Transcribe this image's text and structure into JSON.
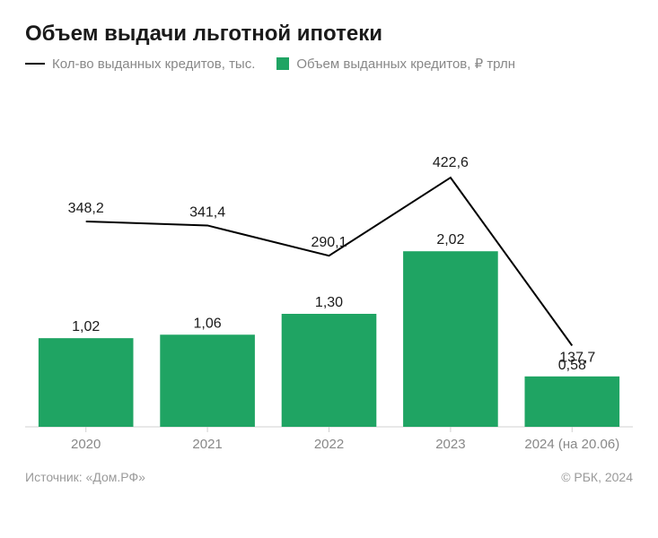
{
  "title": "Объем выдачи льготной ипотеки",
  "legend": {
    "line": "Кол-во выданных кредитов, тыс.",
    "bar": "Объем выданных кредитов, ₽ трлн"
  },
  "chart": {
    "type": "bar+line",
    "categories": [
      "2020",
      "2021",
      "2022",
      "2023",
      "2024 (на 20.06)"
    ],
    "bar_values": [
      1.02,
      1.06,
      1.3,
      2.02,
      0.58
    ],
    "bar_labels": [
      "1,02",
      "1,06",
      "1,30",
      "2,02",
      "0,58"
    ],
    "bar_color": "#1fa463",
    "line_values": [
      348.2,
      341.4,
      290.1,
      422.6,
      137.7
    ],
    "line_labels": [
      "348,2",
      "341,4",
      "290,1",
      "422,6",
      "137,7"
    ],
    "line_color": "#000000",
    "background_color": "#ffffff",
    "axis_color": "#d0d0d0",
    "bar_ylim": [
      0,
      2.6
    ],
    "line_ylim": [
      0,
      520
    ],
    "bar_width_ratio": 0.78,
    "label_fontsize": 16,
    "xlabel_fontsize": 15,
    "xlabel_color": "#888888",
    "label_color": "#1a1a1a"
  },
  "footer": {
    "source": "Источник: «Дом.РФ»",
    "credit": "© РБК, 2024"
  }
}
